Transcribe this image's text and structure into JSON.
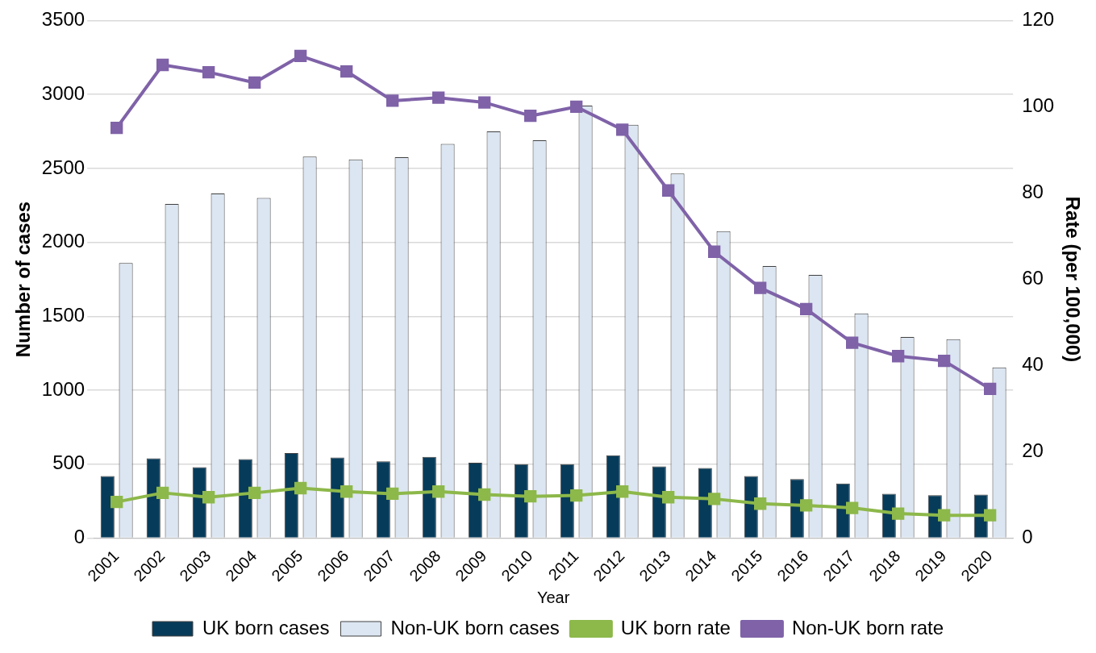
{
  "chart_data": {
    "type": "bar",
    "xlabel": "Year",
    "ylabel": "Number of cases",
    "y2label": "Rate (per 100,000)",
    "categories": [
      "2001",
      "2002",
      "2003",
      "2004",
      "2005",
      "2006",
      "2007",
      "2008",
      "2009",
      "2010",
      "2011",
      "2012",
      "2013",
      "2014",
      "2015",
      "2016",
      "2017",
      "2018",
      "2019",
      "2020"
    ],
    "series": [
      {
        "name": "UK born cases",
        "color": "#073b5a",
        "values": [
          420,
          540,
          480,
          535,
          575,
          545,
          520,
          550,
          510,
          500,
          500,
          560,
          485,
          475,
          420,
          400,
          370,
          300,
          290,
          295
        ]
      },
      {
        "name": "Non-UK born cases",
        "color": "#dce6f2",
        "values": [
          1860,
          2260,
          2330,
          2300,
          2580,
          2560,
          2575,
          2665,
          2750,
          2690,
          2925,
          2795,
          2465,
          2075,
          1840,
          1780,
          1520,
          1360,
          1345,
          1155
        ]
      },
      {
        "name": "UK born rate",
        "type": "line",
        "axis": "y2",
        "color": "#8db84a",
        "values": [
          8.4,
          10.5,
          9.5,
          10.5,
          11.6,
          10.8,
          10.3,
          10.8,
          10.1,
          9.7,
          9.9,
          10.8,
          9.5,
          9.1,
          8.0,
          7.6,
          7.0,
          5.7,
          5.3,
          5.3
        ]
      },
      {
        "name": "Non-UK born rate",
        "type": "line",
        "axis": "y2",
        "color": "#7f62a8",
        "values": [
          95.1,
          109.7,
          108.0,
          105.6,
          111.8,
          108.2,
          101.4,
          102.1,
          101.0,
          97.9,
          100.0,
          94.7,
          80.6,
          66.4,
          58.0,
          53.1,
          45.3,
          42.2,
          41.1,
          34.6
        ]
      }
    ],
    "ylim": [
      0,
      3500
    ],
    "yticks": [
      0,
      500,
      1000,
      1500,
      2000,
      2500,
      3000,
      3500
    ],
    "y2lim": [
      0,
      120
    ],
    "y2ticks": [
      0,
      20,
      40,
      60,
      80,
      100,
      120
    ],
    "grid": "y",
    "legend": "bottom",
    "marker": "square",
    "line_style": "solid"
  }
}
